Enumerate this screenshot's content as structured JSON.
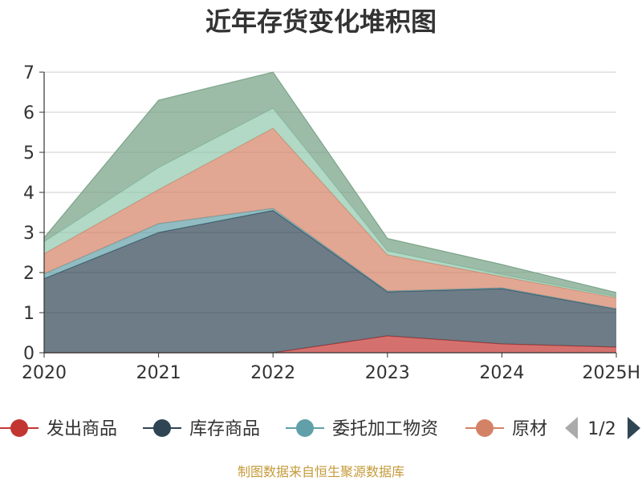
{
  "chart_data": {
    "type": "area",
    "stacked": true,
    "title": "近年存货变化堆积图",
    "xlabel": "",
    "ylabel": "",
    "x": [
      "2020",
      "2021",
      "2022",
      "2023",
      "2024",
      "2025H"
    ],
    "ylim": [
      0,
      7
    ],
    "yticks": [
      0,
      1,
      2,
      3,
      4,
      5,
      6,
      7
    ],
    "grid": true,
    "series": [
      {
        "name": "发出商品",
        "color": "#c23531",
        "values": [
          0,
          0,
          0,
          0.42,
          0.22,
          0.14
        ]
      },
      {
        "name": "库存商品",
        "color": "#2f4554",
        "values": [
          1.85,
          3.0,
          3.55,
          1.1,
          1.38,
          0.95
        ]
      },
      {
        "name": "委托加工物资",
        "color": "#61a0a8",
        "values": [
          0.12,
          0.22,
          0.05,
          0.02,
          0.02,
          0.01
        ]
      },
      {
        "name": "原材料",
        "color": "#d48265",
        "values": [
          0.5,
          0.85,
          2.0,
          0.9,
          0.28,
          0.27
        ]
      },
      {
        "name": "",
        "color": "#91c7ae",
        "values": [
          0.3,
          0.55,
          0.5,
          0.1,
          0.05,
          0.03
        ]
      },
      {
        "name": "",
        "color": "#749f83",
        "values": [
          0.1,
          1.68,
          0.9,
          0.31,
          0.25,
          0.1
        ]
      }
    ],
    "legend": {
      "position": "bottom",
      "visible_items": [
        "发出商品",
        "库存商品",
        "委托加工物资",
        "原材"
      ],
      "page": "1/2"
    },
    "source": "制图数据来自恒生聚源数据库"
  }
}
